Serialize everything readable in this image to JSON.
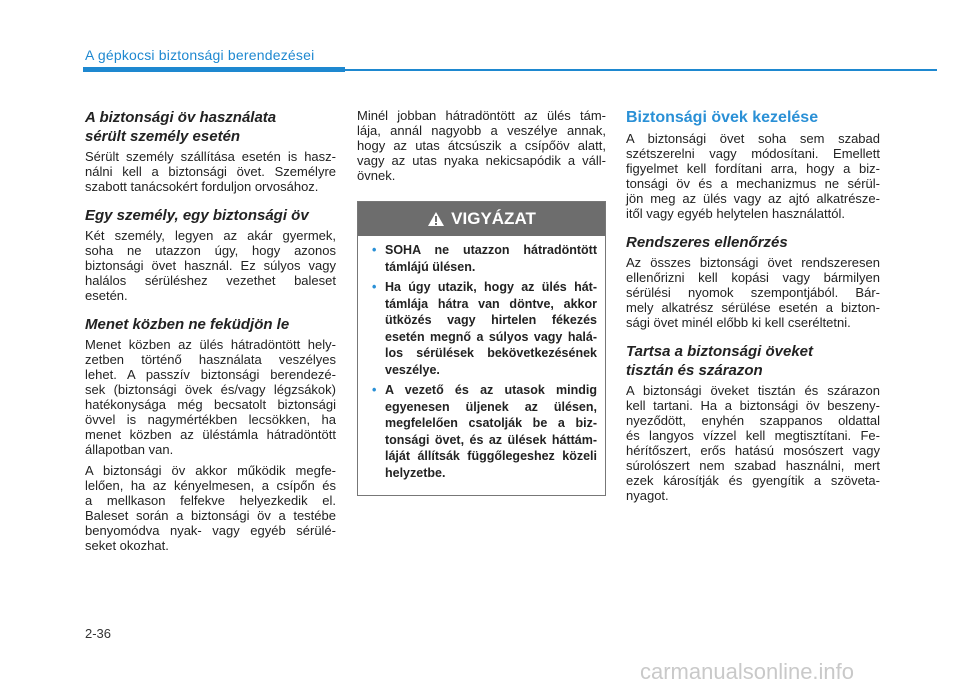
{
  "header": {
    "title": "A gépkocsi biztonsági berendezései"
  },
  "columns": [
    {
      "blocks": [
        {
          "heading": [
            "A biztonsági öv használata",
            "sérült személy esetén"
          ]
        },
        {
          "paragraph": [
            "Sérült személy szállítása esetén is hasz-",
            "nálni kell a biztonsági övet. Személyre",
            "szabott tanácsokért forduljon orvosához."
          ]
        },
        {
          "heading": [
            "Egy személy, egy biztonsági öv"
          ]
        },
        {
          "paragraph": [
            "Két személy, legyen az akár gyermek,",
            "soha ne utazzon úgy, hogy azonos",
            "biztonsági övet használ. Ez súlyos vagy",
            "halálos sérüléshez vezethet baleset",
            "esetén."
          ]
        },
        {
          "heading": [
            "Menet közben ne feküdjön le"
          ]
        },
        {
          "paragraph": [
            "Menet közben az ülés hátradöntött hely-",
            "zetben történő használata veszélyes",
            "lehet. A passzív biztonsági berendezé-",
            "sek (biztonsági övek és/vagy légzsákok)",
            "hatékonysága még becsatolt biztonsági",
            "övvel is nagymértékben lecsökken, ha",
            "menet közben az üléstámla hátradöntött",
            "állapotban van."
          ]
        },
        {
          "paragraph": [
            "A biztonsági öv akkor működik megfe-",
            "lelően, ha az kényelmesen, a csípőn és",
            "a mellkason felfekve helyezkedik el.",
            "Baleset során a biztonsági öv a testébe",
            "benyomódva nyak- vagy egyéb sérülé-",
            "seket okozhat."
          ]
        }
      ]
    },
    {
      "blocks": [
        {
          "paragraph": [
            "Minél jobban hátradöntött az ülés tám-",
            "lája, annál nagyobb a veszélye annak,",
            "hogy az utas átcsúszik a csípőöv alatt,",
            "vagy az utas nyaka nekicsapódik a váll-",
            "övnek."
          ]
        },
        {
          "warning": {
            "title": "VIGYÁZAT",
            "items": [
              [
                "SOHA ne utazzon hátradöntött",
                "támlájú ülésen."
              ],
              [
                "Ha úgy utazik, hogy az ülés hát-",
                "támlája hátra van döntve, akkor",
                "ütközés vagy hirtelen fékezés",
                "esetén megnő a súlyos vagy halá-",
                "los sérülések bekövetkezésének",
                "veszélye."
              ],
              [
                "A vezető és az utasok mindig",
                "egyenesen üljenek az ülésen,",
                "megfelelően csatolják be a biz-",
                "tonsági övet, és az ülések háttám-",
                "láját állítsák függőlegeshez közeli",
                "helyzetbe."
              ]
            ]
          }
        }
      ]
    },
    {
      "blocks": [
        {
          "section_title": [
            "Biztonsági övek kezelése"
          ]
        },
        {
          "paragraph": [
            "A biztonsági övet soha sem szabad",
            "szétszerelni vagy módosítani. Emellett",
            "figyelmet kell fordítani arra, hogy a biz-",
            "tonsági öv és a mechanizmus ne sérül-",
            "jön meg az ülés vagy az ajtó alkatrésze-",
            "itől vagy egyéb helytelen használattól."
          ]
        },
        {
          "heading": [
            "Rendszeres ellenőrzés"
          ]
        },
        {
          "paragraph": [
            "Az összes biztonsági övet rendszeresen",
            "ellenőrizni kell kopási vagy bármilyen",
            "sérülési nyomok szempontjából. Bár-",
            "mely alkatrész sérülése esetén a bizton-",
            "sági övet minél előbb ki kell cseréltetni."
          ]
        },
        {
          "heading": [
            "Tartsa a biztonsági öveket",
            "tisztán és szárazon"
          ]
        },
        {
          "paragraph": [
            "A biztonsági öveket tisztán és szárazon",
            "kell tartani. Ha a biztonsági öv beszeny-",
            "nyeződött, enyhén szappanos oldattal",
            "és langyos vízzel kell megtisztítani. Fe-",
            "hérítőszert, erős hatású mosószert vagy",
            "súrolószert nem szabad használni, mert",
            "ezek károsítják és gyengítik a szöveta-",
            "nyagot."
          ]
        }
      ]
    }
  ],
  "footer": {
    "page": "2-36"
  },
  "watermark": "carmanualsonline.info"
}
